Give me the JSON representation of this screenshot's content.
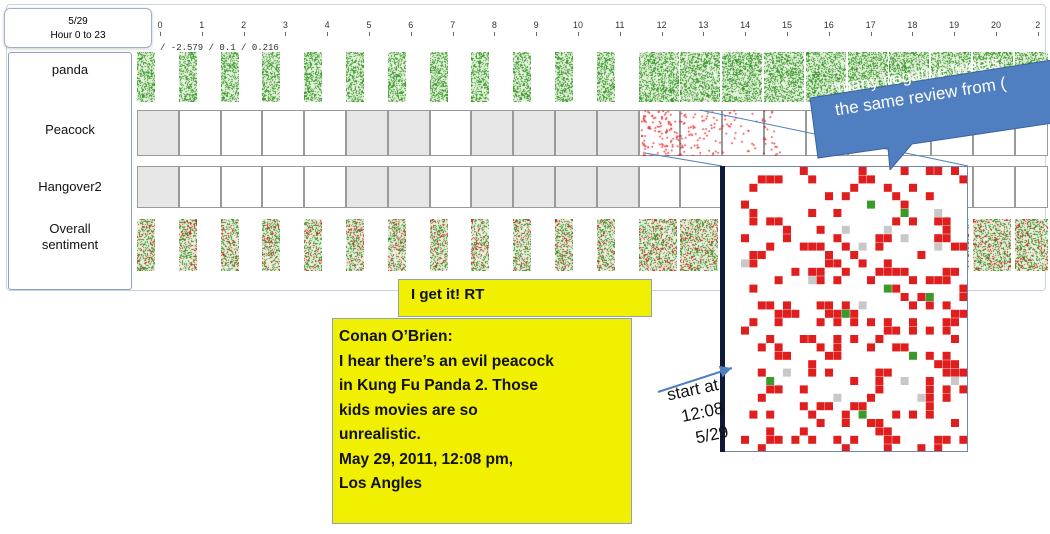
{
  "time_selector": {
    "date": "5/29",
    "range": "Hour 0 to 23"
  },
  "stats_text": "/ -2.579 / 0.1 / 0.216",
  "hour_ticks": [
    "0",
    "1",
    "2",
    "3",
    "4",
    "5",
    "6",
    "7",
    "8",
    "9",
    "10",
    "11",
    "12",
    "13",
    "14",
    "15",
    "16",
    "17",
    "18",
    "19",
    "20",
    "2"
  ],
  "rows": [
    {
      "label": "panda"
    },
    {
      "label": "Peacock"
    },
    {
      "label": "Hangover2"
    },
    {
      "label": "Overall\nsentiment"
    }
  ],
  "colors": {
    "positive": "#3a9a2a",
    "negative": "#e01e1e",
    "neutral": "#c8c8c8",
    "callout_blue": "#4f7fc0",
    "note_yellow": "#f0f000"
  },
  "callout": {
    "text_line1": "“many negative tweets",
    "text_line2": "the same review from ("
  },
  "note_rt": {
    "text": "I get it! RT"
  },
  "note_tweet": {
    "lines": [
      "Conan O’Brien:",
      "I hear there’s an evil peacock",
      "in Kung Fu Panda 2. Those",
      "kids movies are so",
      "unrealistic.",
      "May 29, 2011, 12:08 pm,",
      "Los Angles"
    ]
  },
  "start_label": {
    "line1": "start at",
    "line2": "12:08",
    "line3": "5/29"
  }
}
